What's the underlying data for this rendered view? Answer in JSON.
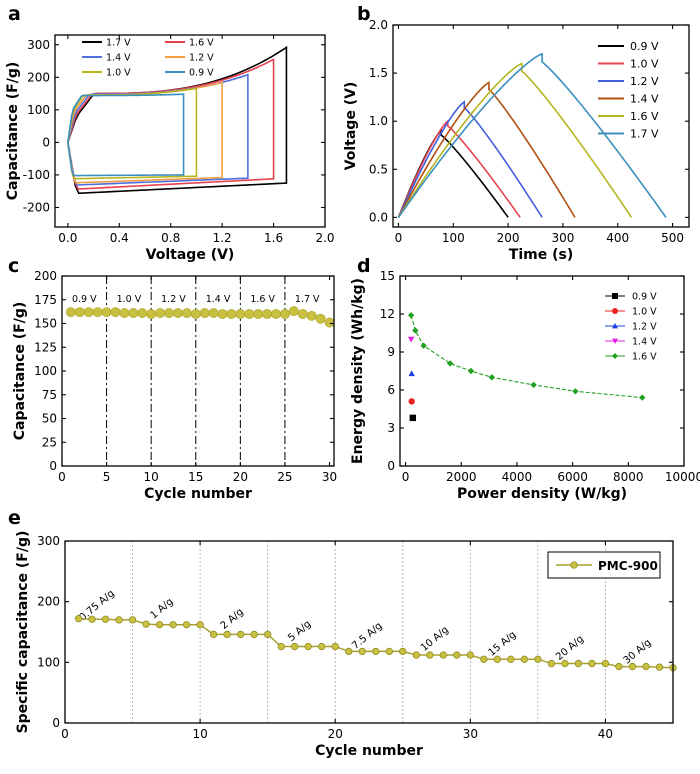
{
  "chart_data": [
    {
      "panel": "a",
      "type": "line",
      "xlabel": "Voltage (V)",
      "ylabel": "Capacitance (F/g)",
      "xlim": [
        -0.1,
        2.0
      ],
      "ylim": [
        -260,
        330
      ],
      "xticks": [
        0.0,
        0.4,
        0.8,
        1.2,
        1.6,
        2.0
      ],
      "xtick_labels": [
        "0.0",
        "0.4",
        "0.8",
        "1.2",
        "1.6",
        "2.0"
      ],
      "yticks": [
        -200,
        -100,
        0,
        100,
        200,
        300
      ],
      "ytick_labels": [
        "-200",
        "-100",
        "0",
        "100",
        "200",
        "300"
      ],
      "legend_position": "top-left",
      "series": [
        {
          "name": "1.7 V",
          "color": "#000000",
          "vmax": 1.7,
          "top_start": 80,
          "top_flat": 150,
          "top_end": 292,
          "bottom_end": -125,
          "bottom_start": -158
        },
        {
          "name": "1.6 V",
          "color": "#e8424e",
          "vmax": 1.6,
          "top_start": 85,
          "top_flat": 150,
          "top_end": 255,
          "bottom_end": -112,
          "bottom_start": -145
        },
        {
          "name": "1.4 V",
          "color": "#4f6fe0",
          "vmax": 1.4,
          "top_start": 90,
          "top_flat": 148,
          "top_end": 208,
          "bottom_end": -110,
          "bottom_start": -132
        },
        {
          "name": "1.2 V",
          "color": "#f0a040",
          "vmax": 1.2,
          "top_start": 95,
          "top_flat": 146,
          "top_end": 184,
          "bottom_end": -108,
          "bottom_start": -125
        },
        {
          "name": "1.0 V",
          "color": "#b5b520",
          "vmax": 1.0,
          "top_start": 98,
          "top_flat": 145,
          "top_end": 166,
          "bottom_end": -104,
          "bottom_start": -112
        },
        {
          "name": "0.9 V",
          "color": "#3a8fbf",
          "vmax": 0.9,
          "top_start": 100,
          "top_flat": 144,
          "top_end": 148,
          "bottom_end": -100,
          "bottom_start": -102
        }
      ]
    },
    {
      "panel": "b",
      "type": "line",
      "xlabel": "Time (s)",
      "ylabel": "Voltage (V)",
      "xlim": [
        -10,
        530
      ],
      "ylim": [
        -0.1,
        2.0
      ],
      "xticks": [
        0,
        100,
        200,
        300,
        400,
        500
      ],
      "xtick_labels": [
        "0",
        "100",
        "200",
        "300",
        "400",
        "500"
      ],
      "yticks": [
        0.0,
        0.5,
        1.0,
        1.5,
        2.0
      ],
      "ytick_labels": [
        "0.0",
        "0.5",
        "1.0",
        "1.5",
        "2.0"
      ],
      "legend_position": "top-right",
      "series": [
        {
          "name": "0.9 V",
          "color": "#000000",
          "vmax": 0.9,
          "t_peak": 78,
          "t_end": 200
        },
        {
          "name": "1.0 V",
          "color": "#e8424e",
          "vmax": 1.0,
          "t_peak": 90,
          "t_end": 222
        },
        {
          "name": "1.2 V",
          "color": "#3f5fe0",
          "vmax": 1.2,
          "t_peak": 120,
          "t_end": 262
        },
        {
          "name": "1.4 V",
          "color": "#b05010",
          "vmax": 1.4,
          "t_peak": 165,
          "t_end": 322
        },
        {
          "name": "1.6 V",
          "color": "#b5b520",
          "vmax": 1.6,
          "t_peak": 225,
          "t_end": 425
        },
        {
          "name": "1.7 V",
          "color": "#3a8fbf",
          "vmax": 1.7,
          "t_peak": 262,
          "t_end": 488
        }
      ]
    },
    {
      "panel": "c",
      "type": "scatter",
      "xlabel": "Cycle number",
      "ylabel": "Capacitance (F/g)",
      "xlim": [
        0,
        30.5
      ],
      "ylim": [
        0,
        200
      ],
      "xticks": [
        0,
        5,
        10,
        15,
        20,
        25,
        30
      ],
      "xtick_labels": [
        "0",
        "5",
        "10",
        "15",
        "20",
        "25",
        "30"
      ],
      "yticks": [
        0,
        25,
        50,
        75,
        100,
        125,
        150,
        175,
        200
      ],
      "ytick_labels": [
        "0",
        "25",
        "50",
        "75",
        "100",
        "125",
        "150",
        "175",
        "200"
      ],
      "dividers": [
        5,
        10,
        15,
        20,
        25
      ],
      "segment_labels": [
        {
          "x": 2.5,
          "text": "0.9 V"
        },
        {
          "x": 7.5,
          "text": "1.0 V"
        },
        {
          "x": 12.5,
          "text": "1.2 V"
        },
        {
          "x": 17.5,
          "text": "1.4 V"
        },
        {
          "x": 22.5,
          "text": "1.6 V"
        },
        {
          "x": 27.5,
          "text": "1.7 V"
        }
      ],
      "color": "#c8c040",
      "x": [
        1,
        2,
        3,
        4,
        5,
        6,
        7,
        8,
        9,
        10,
        11,
        12,
        13,
        14,
        15,
        16,
        17,
        18,
        19,
        20,
        21,
        22,
        23,
        24,
        25,
        26,
        27,
        28,
        29,
        30
      ],
      "y": [
        162,
        162,
        162,
        162,
        162,
        162,
        161,
        161,
        161,
        160,
        161,
        161,
        161,
        161,
        160,
        161,
        161,
        160,
        160,
        160,
        160,
        160,
        160,
        160,
        160,
        163,
        160,
        158,
        155,
        151
      ]
    },
    {
      "panel": "d",
      "type": "scatter",
      "xlabel": "Power density (W/kg)",
      "ylabel": "Energy density (Wh/kg)",
      "xlim": [
        -200,
        10000
      ],
      "ylim": [
        0,
        15
      ],
      "xticks": [
        0,
        2000,
        4000,
        6000,
        8000,
        10000
      ],
      "xtick_labels": [
        "0",
        "2000",
        "4000",
        "6000",
        "8000",
        "10000"
      ],
      "yticks": [
        0,
        3,
        6,
        9,
        12,
        15
      ],
      "ytick_labels": [
        "0",
        "3",
        "6",
        "9",
        "12",
        "15"
      ],
      "legend_position": "top-right",
      "series": [
        {
          "name": "0.9 V",
          "color": "#000000",
          "marker": "square",
          "x": [
            260
          ],
          "y": [
            3.8
          ]
        },
        {
          "name": "1.0 V",
          "color": "#e82020",
          "marker": "circle",
          "x": [
            220
          ],
          "y": [
            5.1
          ]
        },
        {
          "name": "1.2 V",
          "color": "#1f3fe0",
          "marker": "triangle-up",
          "x": [
            220
          ],
          "y": [
            7.3
          ]
        },
        {
          "name": "1.4 V",
          "color": "#e020e0",
          "marker": "triangle-down",
          "x": [
            200
          ],
          "y": [
            10.0
          ]
        },
        {
          "name": "1.6 V",
          "color": "#20a020",
          "marker": "diamond",
          "line": true,
          "x": [
            200,
            350,
            650,
            1600,
            2350,
            3100,
            4600,
            6100,
            8500
          ],
          "y": [
            11.9,
            10.7,
            9.5,
            8.1,
            7.5,
            7.0,
            6.4,
            5.9,
            5.4
          ]
        }
      ]
    },
    {
      "panel": "e",
      "type": "line",
      "xlabel": "Cycle number",
      "ylabel": "Specific capacitance (F/g)",
      "xlim": [
        0,
        45
      ],
      "ylim": [
        0,
        300
      ],
      "xticks": [
        0,
        10,
        20,
        30,
        40
      ],
      "xtick_labels": [
        "0",
        "10",
        "20",
        "30",
        "40"
      ],
      "yticks": [
        0,
        100,
        200,
        300
      ],
      "ytick_labels": [
        "0",
        "100",
        "200",
        "300"
      ],
      "dividers": [
        5,
        10,
        15,
        20,
        25,
        30,
        35,
        40
      ],
      "rate_labels": [
        {
          "x": 2.5,
          "y": 190,
          "text": "0.75 A/g"
        },
        {
          "x": 7.3,
          "y": 185,
          "text": "1 A/g"
        },
        {
          "x": 12.5,
          "y": 168,
          "text": "2 A/g"
        },
        {
          "x": 17.5,
          "y": 148,
          "text": "5 A/g"
        },
        {
          "x": 22.5,
          "y": 140,
          "text": "7.5 A/g"
        },
        {
          "x": 27.5,
          "y": 135,
          "text": "10 A/g"
        },
        {
          "x": 32.5,
          "y": 127,
          "text": "15 A/g"
        },
        {
          "x": 37.5,
          "y": 120,
          "text": "20 A/g"
        },
        {
          "x": 42.5,
          "y": 114,
          "text": "30 A/g"
        }
      ],
      "legend_position": "top-right",
      "series": [
        {
          "name": "PMC-900",
          "color": "#a8a030",
          "x": [
            1,
            2,
            3,
            4,
            5,
            6,
            7,
            8,
            9,
            10,
            11,
            12,
            13,
            14,
            15,
            16,
            17,
            18,
            19,
            20,
            21,
            22,
            23,
            24,
            25,
            26,
            27,
            28,
            29,
            30,
            31,
            32,
            33,
            34,
            35,
            36,
            37,
            38,
            39,
            40,
            41,
            42,
            43,
            44,
            45
          ],
          "y": [
            172,
            171,
            171,
            170,
            170,
            163,
            162,
            162,
            162,
            162,
            146,
            146,
            146,
            146,
            146,
            126,
            126,
            126,
            126,
            126,
            118,
            118,
            118,
            118,
            118,
            112,
            112,
            112,
            112,
            112,
            105,
            105,
            105,
            105,
            105,
            98,
            98,
            98,
            98,
            98,
            93,
            93,
            93,
            92,
            91
          ]
        }
      ]
    }
  ]
}
